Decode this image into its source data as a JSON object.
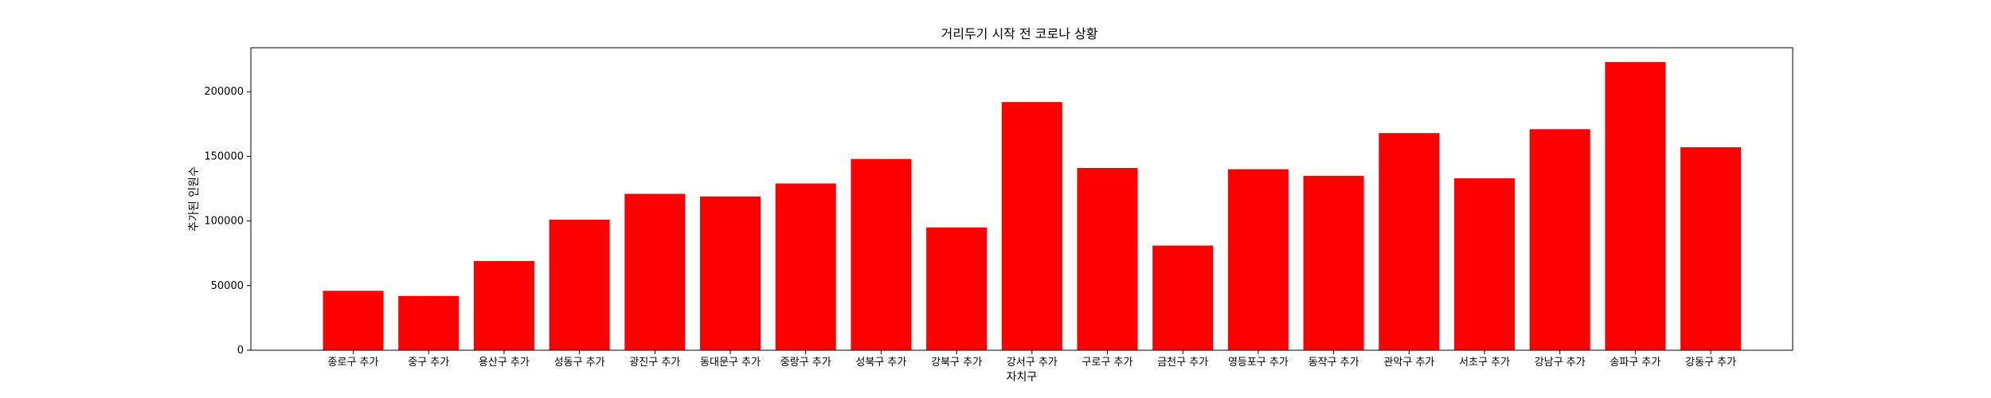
{
  "chart_data": {
    "type": "bar",
    "title": "거리두기 시작 전 코로나 상황",
    "xlabel": "자치구",
    "ylabel": "추가된 인원수",
    "categories": [
      "종로구 추가",
      "중구 추가",
      "용산구 추가",
      "성동구 추가",
      "광진구 추가",
      "동대문구 추가",
      "중랑구 추가",
      "성북구 추가",
      "강북구 추가",
      "강서구 추가",
      "구로구 추가",
      "금천구 추가",
      "영등포구 추가",
      "동작구 추가",
      "관악구 추가",
      "서초구 추가",
      "강남구 추가",
      "송파구 추가",
      "강동구 추가"
    ],
    "values": [
      46000,
      42000,
      69000,
      101000,
      121000,
      119000,
      129000,
      148000,
      95000,
      192000,
      141000,
      81000,
      140000,
      135000,
      168000,
      133000,
      171000,
      223000,
      157000
    ],
    "ylim": [
      0,
      234000
    ],
    "yticks": [
      0,
      50000,
      100000,
      150000,
      200000
    ],
    "bar_color": "#ff0000",
    "grid": false,
    "legend": "none"
  }
}
